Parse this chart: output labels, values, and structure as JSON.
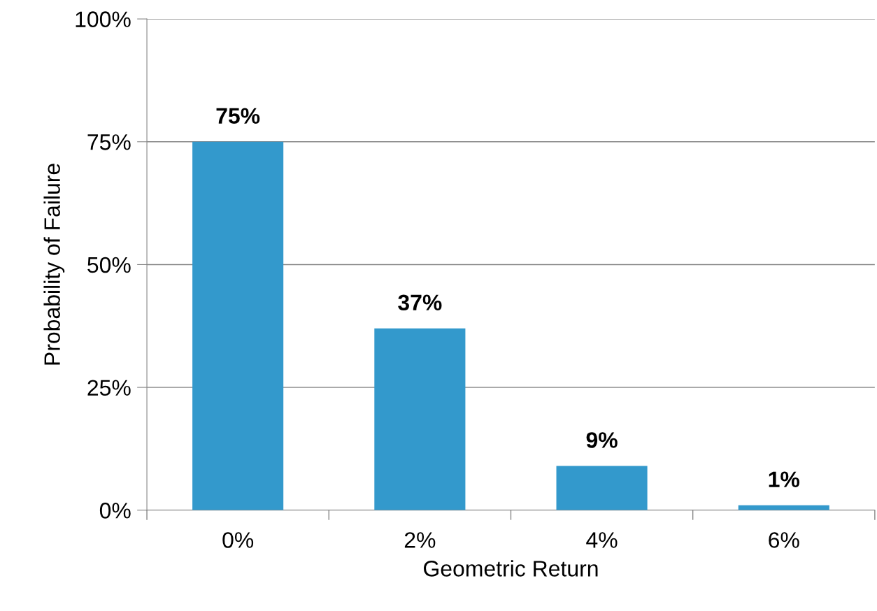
{
  "chart_data": {
    "type": "bar",
    "xlabel": "Geometric Return",
    "ylabel": "Probability of Failure",
    "categories": [
      "0%",
      "2%",
      "4%",
      "6%"
    ],
    "values": [
      75,
      37,
      9,
      1
    ],
    "value_labels": [
      "75%",
      "37%",
      "9%",
      "1%"
    ],
    "color": "#3399cc",
    "ylim": [
      0,
      100
    ],
    "yticks": [
      {
        "value": 0,
        "label": "0%"
      },
      {
        "value": 25,
        "label": "25%"
      },
      {
        "value": 50,
        "label": "50%"
      },
      {
        "value": 75,
        "label": "75%"
      },
      {
        "value": 100,
        "label": "100%"
      }
    ],
    "grid": "y",
    "legend": false
  }
}
